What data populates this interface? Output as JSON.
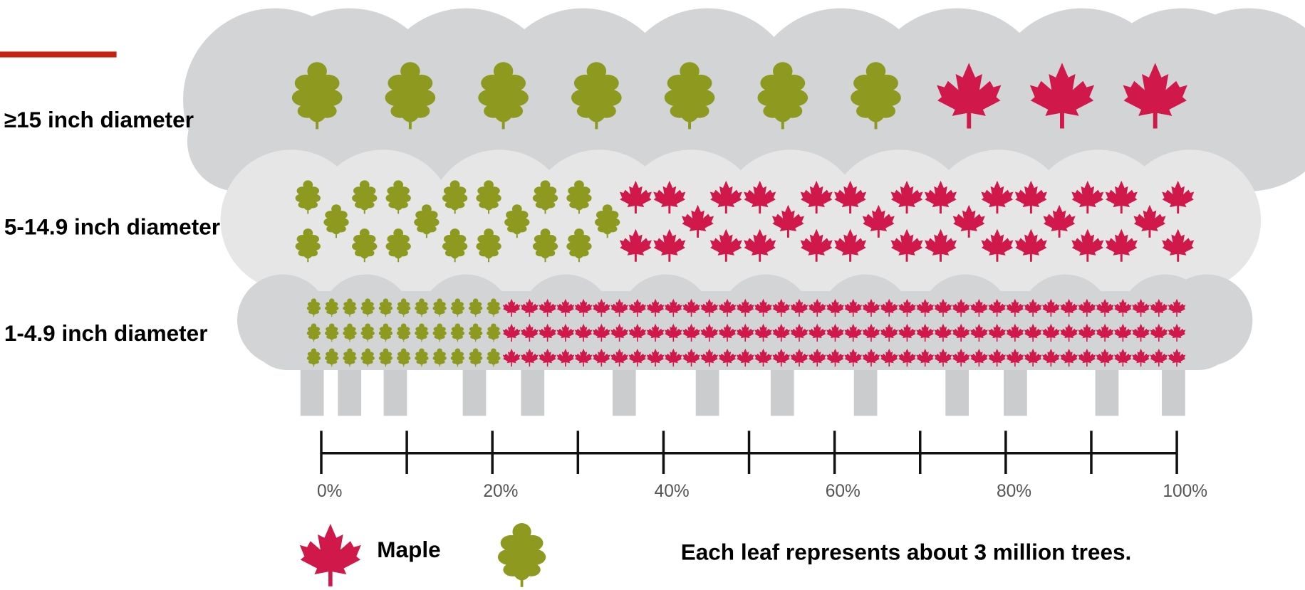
{
  "chart_data": {
    "type": "pictograph",
    "categories": [
      "≥15 inch diameter",
      "5-14.9 inch diameter",
      "1-4.9 inch diameter"
    ],
    "series": [
      {
        "name": "Maple",
        "color": "#d0184a",
        "values": [
          3,
          32,
          114
        ]
      },
      {
        "color": "#8d9a1f",
        "values": [
          7,
          18,
          33
        ]
      }
    ],
    "xlim": [
      0,
      100
    ],
    "xticks": [
      {
        "value": 0,
        "label": "0%"
      },
      {
        "value": 20,
        "label": "20%"
      },
      {
        "value": 40,
        "label": "40%"
      },
      {
        "value": 60,
        "label": "60%"
      },
      {
        "value": 80,
        "label": "80%"
      },
      {
        "value": 100,
        "label": "100%"
      }
    ],
    "minor_xticks": [
      10,
      30,
      50,
      70,
      90
    ],
    "note": "Each leaf represents about 3 million trees."
  }
}
